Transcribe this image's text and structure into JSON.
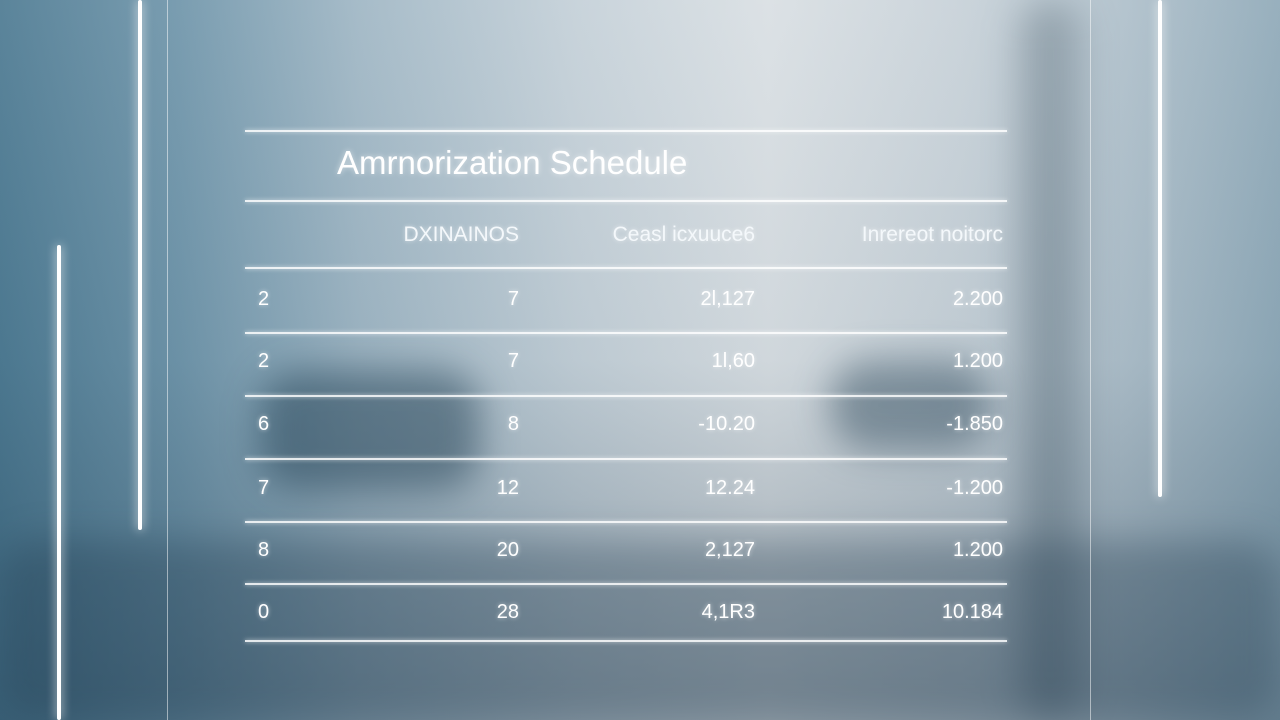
{
  "header": {
    "title": "Amrnorization Schedule"
  },
  "table": {
    "columns": [
      "",
      "DXINAINOS",
      "Ceasl icxuuce6",
      "Inrereot noitorc"
    ],
    "rows": [
      [
        "2",
        "7",
        "2l,127",
        "2.200"
      ],
      [
        "2",
        "7",
        "1l,60",
        "1.200"
      ],
      [
        "6",
        "8",
        "-10.20",
        "-1.850"
      ],
      [
        "7",
        "12",
        "12.24",
        "-1.200"
      ],
      [
        "8",
        "20",
        "2,127",
        "1.200"
      ],
      [
        "0",
        "28",
        "4,1R3",
        "10.184"
      ]
    ]
  }
}
